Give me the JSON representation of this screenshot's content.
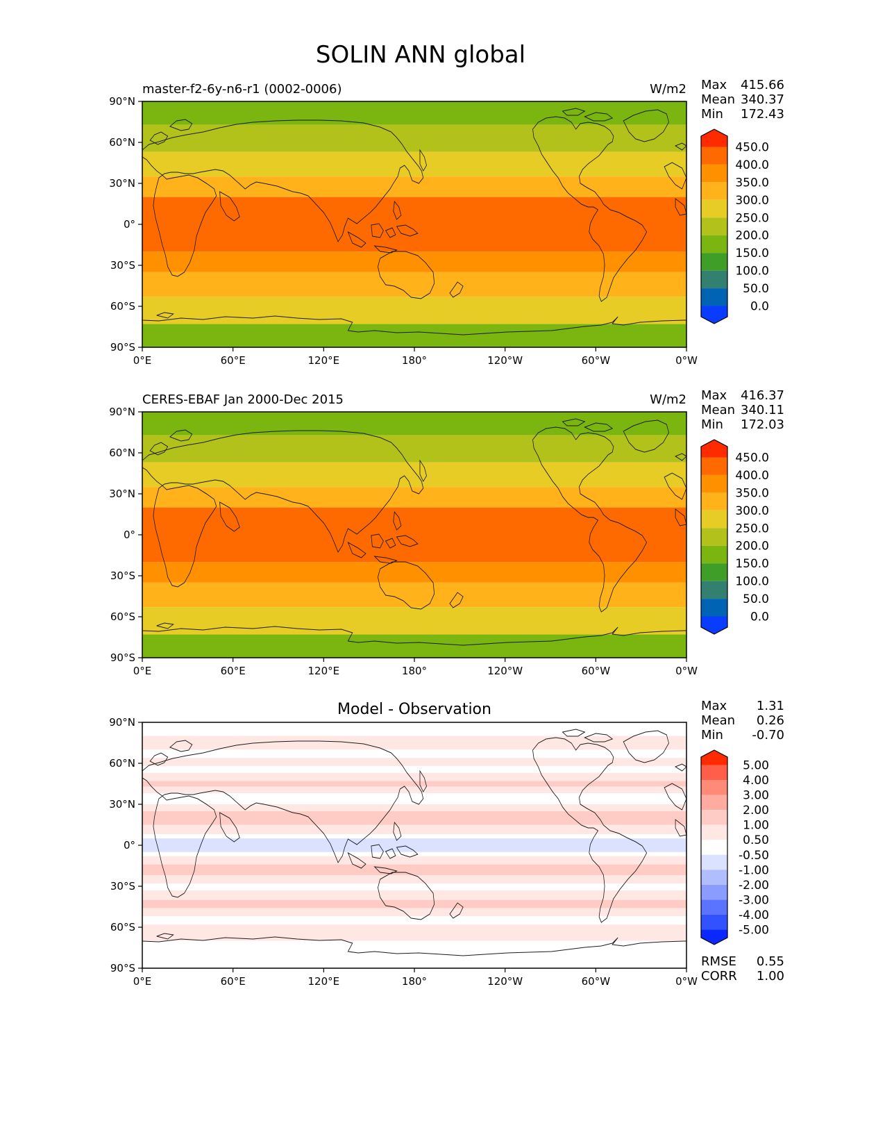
{
  "figure_title": "SOLIN ANN global",
  "longitude_ticks": [
    "0°E",
    "60°E",
    "120°E",
    "180°",
    "120°W",
    "60°W",
    "0°W"
  ],
  "latitude_ticks": [
    "90°N",
    "60°N",
    "30°N",
    "0°",
    "30°S",
    "60°S",
    "90°S"
  ],
  "chart_data": [
    {
      "type": "heatmap",
      "title": "master-f2-6y-n6-r1 (0002-0006)",
      "units": "W/m2",
      "stats": [
        {
          "label": "Max",
          "value": "415.66"
        },
        {
          "label": "Mean",
          "value": "340.37"
        },
        {
          "label": "Min",
          "value": "172.43"
        }
      ],
      "colorbar": {
        "levels": [
          "450.0",
          "400.0",
          "350.0",
          "300.0",
          "250.0",
          "200.0",
          "150.0",
          "100.0",
          "50.0",
          "0.0"
        ],
        "colors": [
          "#ff2b00",
          "#ff6a00",
          "#ff9100",
          "#ffb21a",
          "#e6cc24",
          "#b2c21a",
          "#7ab510",
          "#3f9e28",
          "#338070",
          "#0063b3",
          "#0a3cff"
        ]
      },
      "zonal_bands": [
        {
          "lat": [
            73,
            90
          ],
          "value": 180
        },
        {
          "lat": [
            53,
            73
          ],
          "value": 230
        },
        {
          "lat": [
            35,
            53
          ],
          "value": 290
        },
        {
          "lat": [
            20,
            35
          ],
          "value": 330
        },
        {
          "lat": [
            -20,
            20
          ],
          "value": 410
        },
        {
          "lat": [
            -35,
            -20
          ],
          "value": 370
        },
        {
          "lat": [
            -53,
            -35
          ],
          "value": 320
        },
        {
          "lat": [
            -73,
            -53
          ],
          "value": 250
        },
        {
          "lat": [
            -90,
            -73
          ],
          "value": 180
        }
      ]
    },
    {
      "type": "heatmap",
      "title": "CERES-EBAF Jan 2000-Dec 2015",
      "units": "W/m2",
      "stats": [
        {
          "label": "Max",
          "value": "416.37"
        },
        {
          "label": "Mean",
          "value": "340.11"
        },
        {
          "label": "Min",
          "value": "172.03"
        }
      ],
      "colorbar": {
        "levels": [
          "450.0",
          "400.0",
          "350.0",
          "300.0",
          "250.0",
          "200.0",
          "150.0",
          "100.0",
          "50.0",
          "0.0"
        ],
        "colors": [
          "#ff2b00",
          "#ff6a00",
          "#ff9100",
          "#ffb21a",
          "#e6cc24",
          "#b2c21a",
          "#7ab510",
          "#3f9e28",
          "#338070",
          "#0063b3",
          "#0a3cff"
        ]
      },
      "zonal_bands": [
        {
          "lat": [
            73,
            90
          ],
          "value": 180
        },
        {
          "lat": [
            53,
            73
          ],
          "value": 230
        },
        {
          "lat": [
            35,
            53
          ],
          "value": 290
        },
        {
          "lat": [
            20,
            35
          ],
          "value": 330
        },
        {
          "lat": [
            -20,
            20
          ],
          "value": 410
        },
        {
          "lat": [
            -35,
            -20
          ],
          "value": 370
        },
        {
          "lat": [
            -53,
            -35
          ],
          "value": 320
        },
        {
          "lat": [
            -73,
            -53
          ],
          "value": 250
        },
        {
          "lat": [
            -90,
            -73
          ],
          "value": 180
        }
      ]
    },
    {
      "type": "heatmap",
      "title": "Model - Observation",
      "units": "",
      "stats": [
        {
          "label": "Max",
          "value": "1.31"
        },
        {
          "label": "Mean",
          "value": "0.26"
        },
        {
          "label": "Min",
          "value": "-0.70"
        }
      ],
      "extra_stats": [
        {
          "label": "RMSE",
          "value": "0.55"
        },
        {
          "label": "CORR",
          "value": "1.00"
        }
      ],
      "colorbar": {
        "levels": [
          "5.00",
          "4.00",
          "3.00",
          "2.00",
          "1.00",
          "0.50",
          "-0.50",
          "-1.00",
          "-2.00",
          "-3.00",
          "-4.00",
          "-5.00"
        ],
        "colors": [
          "#ff2b00",
          "#ff5e4a",
          "#ff8a78",
          "#ffaba0",
          "#ffccc5",
          "#ffe8e4",
          "#ffffff",
          "#dbe2ff",
          "#b0beff",
          "#8a9cff",
          "#5a74ff",
          "#3352ff",
          "#0a28ff"
        ]
      },
      "zonal_bands": [
        {
          "lat": [
            80,
            90
          ],
          "value": 0
        },
        {
          "lat": [
            70,
            80
          ],
          "value": 0.6
        },
        {
          "lat": [
            64,
            70
          ],
          "value": 0
        },
        {
          "lat": [
            58,
            64
          ],
          "value": 0.6
        },
        {
          "lat": [
            53,
            58
          ],
          "value": 0
        },
        {
          "lat": [
            47,
            53
          ],
          "value": 0.6
        },
        {
          "lat": [
            43,
            47
          ],
          "value": 1.1
        },
        {
          "lat": [
            38,
            43
          ],
          "value": 0.6
        },
        {
          "lat": [
            30,
            38
          ],
          "value": 0
        },
        {
          "lat": [
            25,
            30
          ],
          "value": 0.6
        },
        {
          "lat": [
            15,
            25
          ],
          "value": 1.1
        },
        {
          "lat": [
            8,
            15
          ],
          "value": 0.6
        },
        {
          "lat": [
            5,
            8
          ],
          "value": 0
        },
        {
          "lat": [
            -5,
            5
          ],
          "value": -0.6
        },
        {
          "lat": [
            -8,
            -5
          ],
          "value": 0
        },
        {
          "lat": [
            -14,
            -8
          ],
          "value": 0.6
        },
        {
          "lat": [
            -22,
            -14
          ],
          "value": 1.1
        },
        {
          "lat": [
            -28,
            -22
          ],
          "value": 0.6
        },
        {
          "lat": [
            -33,
            -28
          ],
          "value": 0
        },
        {
          "lat": [
            -40,
            -33
          ],
          "value": 0.6
        },
        {
          "lat": [
            -46,
            -40
          ],
          "value": 1.1
        },
        {
          "lat": [
            -52,
            -46
          ],
          "value": 0.6
        },
        {
          "lat": [
            -58,
            -52
          ],
          "value": 0
        },
        {
          "lat": [
            -70,
            -58
          ],
          "value": 0.6
        },
        {
          "lat": [
            -90,
            -70
          ],
          "value": 0
        }
      ]
    }
  ]
}
